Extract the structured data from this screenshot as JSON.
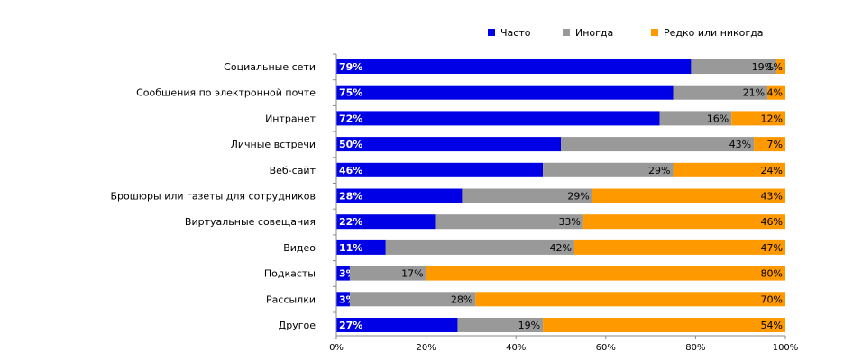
{
  "chart_data": {
    "type": "bar",
    "orientation": "horizontal",
    "stacked": true,
    "categories": [
      "Социальные сети",
      "Сообщения по электронной почте",
      "Интранет",
      "Личные встречи",
      "Веб-сайт",
      "Брошюры или газеты для сотрудников",
      "Виртуальные совещания",
      "Видео",
      "Подкасты",
      "Рассылки",
      "Другое"
    ],
    "series": [
      {
        "name": "Часто",
        "color": "#0000e6",
        "label_color": "#ffffff",
        "values": [
          79,
          75,
          72,
          50,
          46,
          28,
          22,
          11,
          3,
          3,
          27
        ]
      },
      {
        "name": "Иногда",
        "color": "#999999",
        "label_color": "#000000",
        "values": [
          19,
          21,
          16,
          43,
          29,
          29,
          33,
          42,
          17,
          28,
          19
        ]
      },
      {
        "name": "Редко или никогда",
        "color": "#ff9900",
        "label_color": "#000000",
        "values": [
          1,
          4,
          12,
          7,
          24,
          43,
          46,
          47,
          80,
          70,
          54
        ]
      }
    ],
    "xlim": [
      0,
      100
    ],
    "xticks": [
      "0%",
      "20%",
      "40%",
      "60%",
      "80%",
      "100%"
    ],
    "value_suffix": "%",
    "legend_position": "top-right",
    "title": "",
    "xlabel": "",
    "ylabel": ""
  }
}
